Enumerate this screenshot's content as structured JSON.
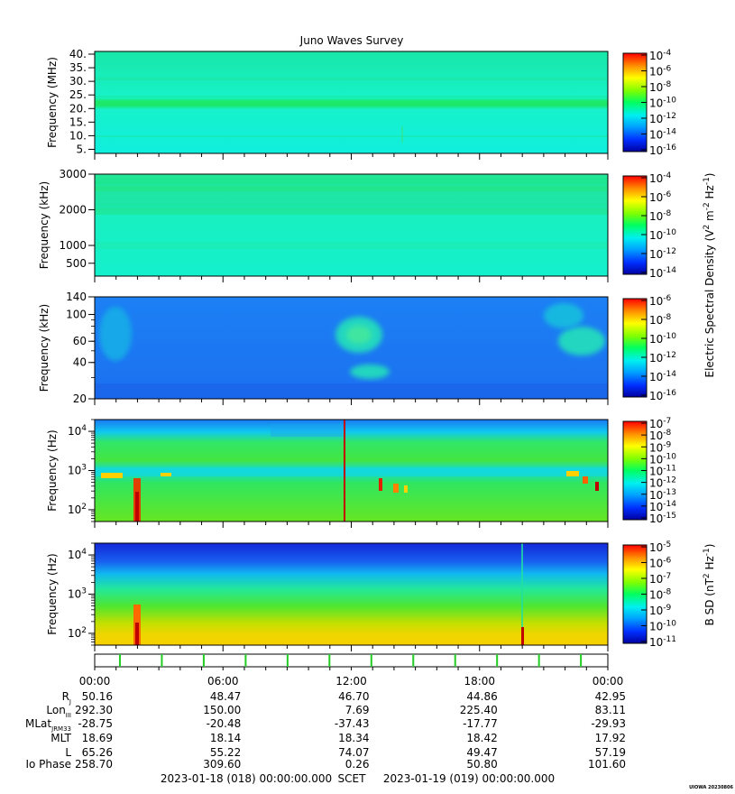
{
  "title": "Juno Waves Survey",
  "chart_data": [
    {
      "type": "heatmap",
      "ylabel": "Frequency (MHz)",
      "ylim": [
        3.5,
        41
      ],
      "yticks": [
        {
          "v": 5,
          "label": "5."
        },
        {
          "v": 10,
          "label": "10."
        },
        {
          "v": 15,
          "label": "15."
        },
        {
          "v": 20,
          "label": "20."
        },
        {
          "v": 25,
          "label": "25."
        },
        {
          "v": 30,
          "label": "30."
        },
        {
          "v": 35,
          "label": "35."
        },
        {
          "v": 40,
          "label": "40."
        }
      ],
      "colorbar": {
        "exp": [
          "-4",
          "-6",
          "-8",
          "-10",
          "-12",
          "-14",
          "-16"
        ]
      }
    },
    {
      "type": "heatmap",
      "ylabel": "Frequency (kHz)",
      "ylim": [
        140,
        3000
      ],
      "yticks": [
        {
          "v": 500,
          "label": "500"
        },
        {
          "v": 1000,
          "label": "1000"
        },
        {
          "v": 2000,
          "label": "2000"
        },
        {
          "v": 3000,
          "label": "3000"
        }
      ],
      "colorbar": {
        "exp": [
          "-4",
          "-6",
          "-8",
          "-10",
          "-12",
          "-14"
        ]
      }
    },
    {
      "type": "heatmap",
      "ylabel": "Frequency (kHz)",
      "ylim": [
        20,
        140
      ],
      "yticks": [
        {
          "v": 20,
          "label": "20"
        },
        {
          "v": 40,
          "label": "40"
        },
        {
          "v": 60,
          "label": "60"
        },
        {
          "v": 100,
          "label": "100"
        },
        {
          "v": 140,
          "label": "140"
        }
      ],
      "colorbar": {
        "exp": [
          "-6",
          "-8",
          "-10",
          "-12",
          "-14",
          "-16"
        ]
      }
    },
    {
      "type": "heatmap",
      "ylabel": "Frequency (Hz)",
      "ylim": [
        50,
        20000
      ],
      "yticks": [
        {
          "v": 100,
          "exp": "2"
        },
        {
          "v": 1000,
          "exp": "3"
        },
        {
          "v": 10000,
          "exp": "4"
        }
      ],
      "colorbar": {
        "exp": [
          "-7",
          "-8",
          "-9",
          "-10",
          "-11",
          "-12",
          "-13",
          "-14",
          "-15"
        ]
      }
    },
    {
      "type": "heatmap",
      "ylabel": "Frequency (Hz)",
      "ylim": [
        50,
        20000
      ],
      "yticks": [
        {
          "v": 100,
          "exp": "2"
        },
        {
          "v": 1000,
          "exp": "3"
        },
        {
          "v": 10000,
          "exp": "4"
        }
      ],
      "colorbar": {
        "exp": [
          "-5",
          "-6",
          "-7",
          "-8",
          "-9",
          "-10",
          "-11"
        ]
      }
    }
  ],
  "colorbar_label_e": {
    "prefix": "Electric Spectral Density (V",
    "sup1": "2",
    "mid1": " m",
    "sup2": "-2",
    "mid2": " Hz",
    "sup3": "-1",
    "suffix": ")"
  },
  "colorbar_label_b": {
    "prefix": "B SD (nT",
    "sup1": "2",
    "mid1": " Hz",
    "sup2": "-1",
    "suffix": ")"
  },
  "colorbar_base": "10",
  "time_axis": {
    "labels": [
      "00:00",
      "06:00",
      "12:00",
      "18:00",
      "00:00"
    ],
    "hours": [
      0,
      6,
      12,
      18,
      24
    ]
  },
  "ephemeris": [
    {
      "label": "R",
      "sub": "J",
      "values": [
        "50.16",
        "48.47",
        "46.70",
        "44.86",
        "42.95"
      ]
    },
    {
      "label": "Lon",
      "sub": "III",
      "values": [
        "292.30",
        "150.00",
        "7.69",
        "225.40",
        "83.11"
      ]
    },
    {
      "label": "MLat",
      "sub": "JRM33",
      "values": [
        "-28.75",
        "-20.48",
        "-37.43",
        "-17.77",
        "-29.93"
      ]
    },
    {
      "label": "MLT",
      "sub": "",
      "values": [
        "18.69",
        "18.14",
        "18.34",
        "18.42",
        "17.92"
      ]
    },
    {
      "label": "L",
      "sub": "",
      "values": [
        "65.26",
        "55.22",
        "74.07",
        "49.47",
        "57.19"
      ]
    },
    {
      "label": "Io Phase",
      "sub": "",
      "values": [
        "258.70",
        "309.60",
        "0.26",
        "50.80",
        "101.60"
      ]
    }
  ],
  "footer": {
    "start": "2023-01-18 (018) 00:00:00.000",
    "scet": "SCET",
    "end": "2023-01-19 (019) 00:00:00.000"
  },
  "stamp": "UIOWA 20230806",
  "colors": {
    "bg_teal": "#16f2c2",
    "bg_blue": "#1c78f2",
    "band_green": "#1ce86a",
    "marker_green": "#22cc22"
  }
}
